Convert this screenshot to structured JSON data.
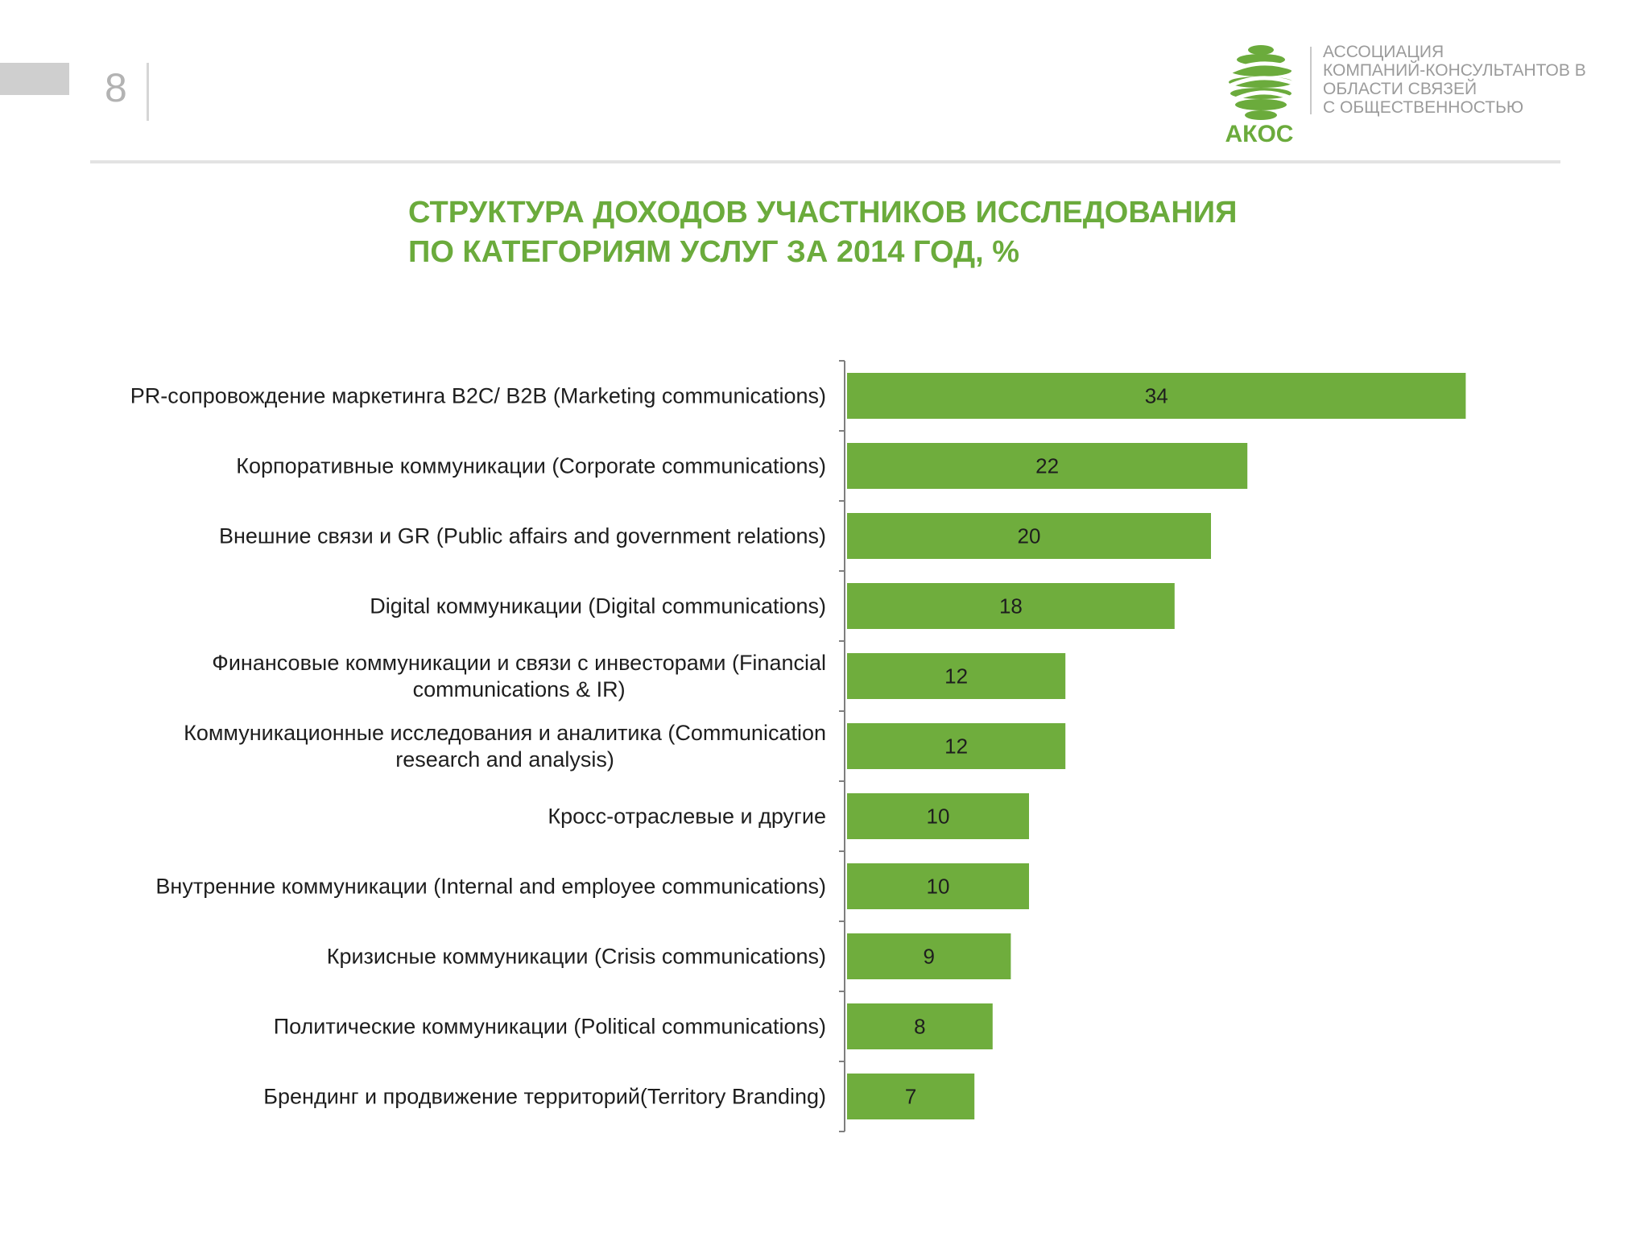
{
  "page_number": "8",
  "logo": {
    "text": "АКОС",
    "org_lines": [
      "АССОЦИАЦИЯ",
      "КОМПАНИЙ-КОНСУЛЬТАНТОВ В",
      "ОБЛАСТИ СВЯЗЕЙ",
      "С ОБЩЕСТВЕННОСТЬЮ"
    ]
  },
  "colors": {
    "accent": "#6bab3c",
    "bar": "#6fad3d",
    "axis": "#7f7f7f"
  },
  "chart_data": {
    "type": "bar",
    "orientation": "horizontal",
    "title_lines": [
      "СТРУКТУРА ДОХОДОВ УЧАСТНИКОВ ИССЛЕДОВАНИЯ",
      "ПО КАТЕГОРИЯМ УСЛУГ ЗА 2014 ГОД, %"
    ],
    "categories": [
      [
        "PR-сопровождение маркетинга B2C/ B2B (Marketing communications)"
      ],
      [
        "Корпоративные коммуникации (Corporate communications)"
      ],
      [
        "Внешние связи и GR (Public affairs and government relations)"
      ],
      [
        "Digital коммуникации (Digital communications)"
      ],
      [
        "Финансовые коммуникации и связи с инвесторами (Financial",
        "communications & IR)"
      ],
      [
        "Коммуникационные исследования и аналитика (Communication",
        "research and analysis)"
      ],
      [
        "Кросс-отраслевые и другие"
      ],
      [
        "Внутренние коммуникации (Internal and employee communications)"
      ],
      [
        "Кризисные коммуникации (Crisis communications)"
      ],
      [
        "Политические коммуникации (Political communications)"
      ],
      [
        "Брендинг и продвижение территорий(Territory Branding)"
      ]
    ],
    "values": [
      34,
      22,
      20,
      18,
      12,
      12,
      10,
      10,
      9,
      8,
      7
    ],
    "value_labels": [
      "34",
      "22",
      "20",
      "18",
      "12",
      "12",
      "10",
      "10",
      "9",
      "8",
      "7"
    ],
    "xlim": [
      0,
      35
    ],
    "grid": false,
    "legend": "none"
  }
}
